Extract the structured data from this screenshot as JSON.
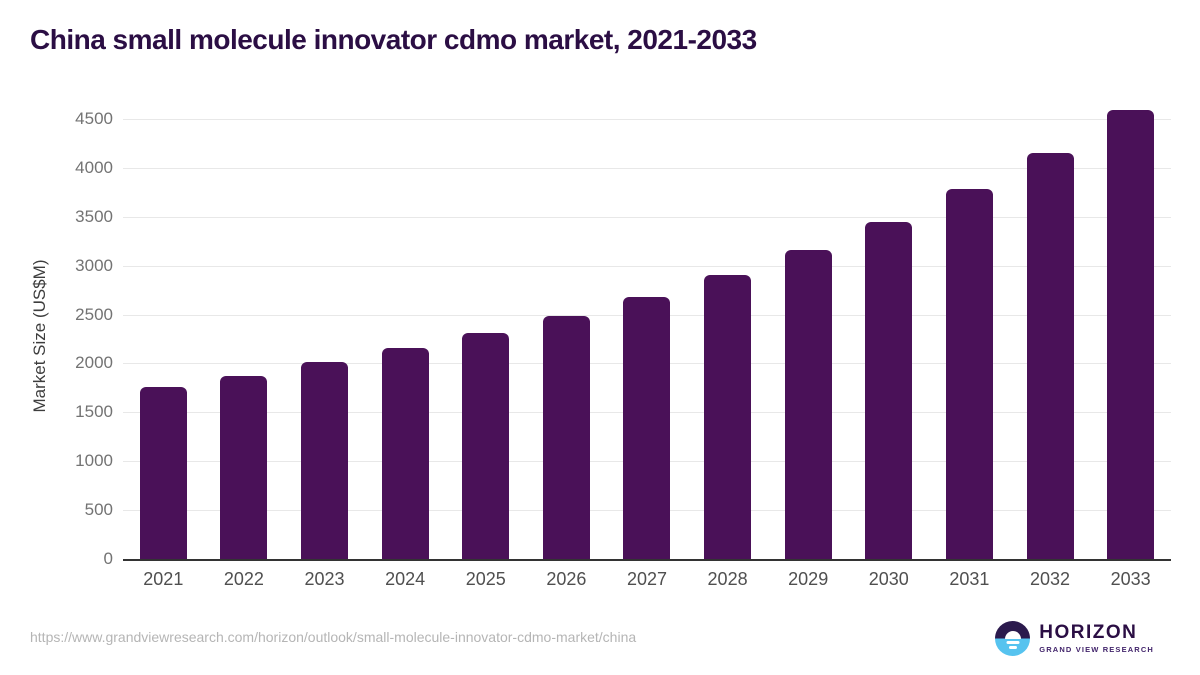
{
  "page": {
    "title": "China small molecule innovator cdmo market, 2021-2033",
    "source_url": "https://www.grandviewresearch.com/horizon/outlook/small-molecule-innovator-cdmo-market/china"
  },
  "logo": {
    "name": "HORIZON",
    "subtitle": "GRAND VIEW RESEARCH",
    "icon": "sunset-horizon-icon"
  },
  "colors": {
    "bar": "#4a1158",
    "title": "#2b0e44",
    "grid": "#e8e8e8",
    "axis_line": "#333333",
    "tick_label": "#737373",
    "x_label": "#4f4f4f",
    "url": "#b5b5b5",
    "logo_purple": "#2b1a4d",
    "logo_blue": "#56c3ef"
  },
  "chart_data": {
    "type": "bar",
    "title": "China small molecule innovator cdmo market, 2021-2033",
    "xlabel": "",
    "ylabel": "Market Size (US$M)",
    "categories": [
      "2021",
      "2022",
      "2023",
      "2024",
      "2025",
      "2026",
      "2027",
      "2028",
      "2029",
      "2030",
      "2031",
      "2032",
      "2033"
    ],
    "values": [
      1760,
      1875,
      2010,
      2155,
      2310,
      2490,
      2680,
      2905,
      3160,
      3450,
      3785,
      4155,
      4590
    ],
    "ylim": [
      0,
      4500
    ],
    "yticks": [
      0,
      500,
      1000,
      1500,
      2000,
      2500,
      3000,
      3500,
      4000,
      4500
    ],
    "grid": "horizontal",
    "legend": "none",
    "bar_color": "#4a1158"
  }
}
